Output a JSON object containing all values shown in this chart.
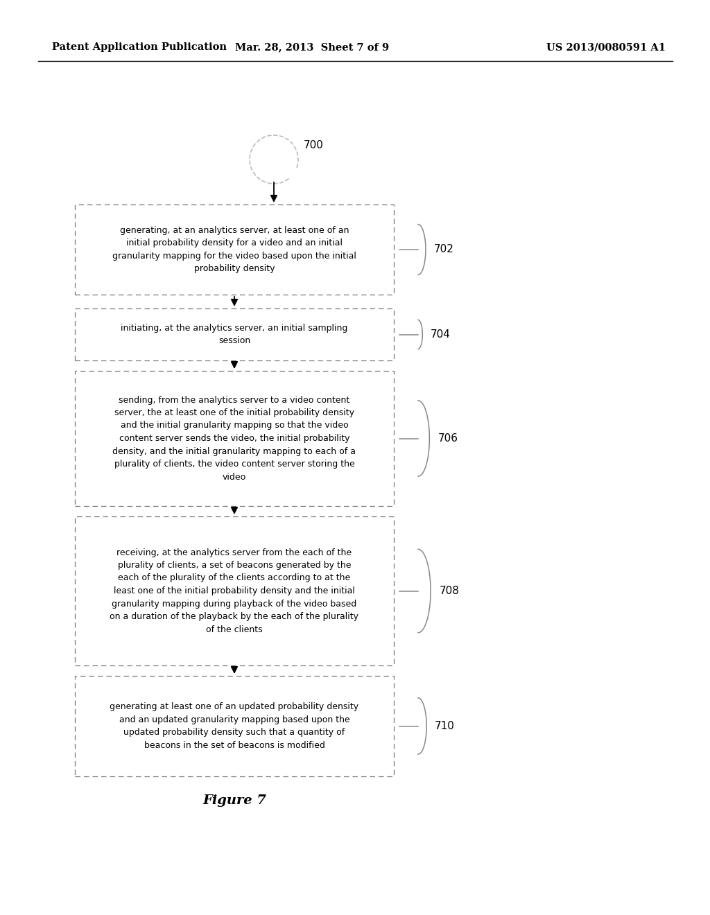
{
  "background_color": "#ffffff",
  "header_left": "Patent Application Publication",
  "header_mid": "Mar. 28, 2013  Sheet 7 of 9",
  "header_right": "US 2013/0080591 A1",
  "figure_label": "Figure 7",
  "start_label": "700",
  "boxes": [
    {
      "id": "702",
      "label": "702",
      "text": "generating, at an analytics server, at least one of an\ninitial probability density for a video and an initial\ngranularity mapping for the video based upon the initial\nprobability density"
    },
    {
      "id": "704",
      "label": "704",
      "text": "initiating, at the analytics server, an initial sampling\nsession"
    },
    {
      "id": "706",
      "label": "706",
      "text": "sending, from the analytics server to a video content\nserver, the at least one of the initial probability density\nand the initial granularity mapping so that the video\ncontent server sends the video, the initial probability\ndensity, and the initial granularity mapping to each of a\nplurality of clients, the video content server storing the\nvideo"
    },
    {
      "id": "708",
      "label": "708",
      "text": "receiving, at the analytics server from the each of the\nplurality of clients, a set of beacons generated by the\neach of the plurality of the clients according to at the\nleast one of the initial probability density and the initial\ngranularity mapping during playback of the video based\non a duration of the playback by the each of the plurality\nof the clients"
    },
    {
      "id": "710",
      "label": "710",
      "text": "generating at least one of an updated probability density\nand an updated granularity mapping based upon the\nupdated probability density such that a quantity of\nbeacons in the set of beacons is modified"
    }
  ]
}
